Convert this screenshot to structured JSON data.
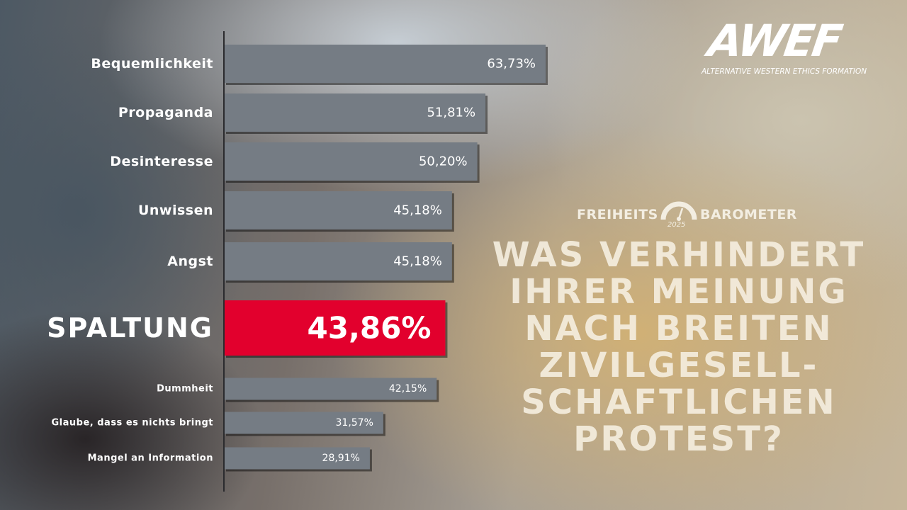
{
  "logo": {
    "mark": "AWEF",
    "name": "ALTERNATIVE WESTERN ETHICS FORMATION"
  },
  "barometer": {
    "word_left": "FREIHEITS",
    "word_right": "BAROMETER",
    "year": "2025",
    "gauge_icon": "gauge-icon"
  },
  "question": {
    "lines": [
      "WAS VERHINDERT",
      "IHRER MEINUNG",
      "NACH BREITEN",
      "ZIVILGESELL-",
      "SCHAFTLICHEN",
      "PROTEST?"
    ]
  },
  "colors": {
    "bar": "#757c84",
    "highlight": "#e2002d",
    "axis": "#2b2b2e"
  },
  "chart_data": {
    "type": "bar",
    "orientation": "horizontal",
    "title": "",
    "xlabel": "",
    "ylabel": "",
    "unit": "%",
    "xlim": [
      0,
      63.73
    ],
    "categories": [
      "Bequemlichkeit",
      "Propaganda",
      "Desinteresse",
      "Unwissen",
      "Angst",
      "SPALTUNG",
      "Dummheit",
      "Glaube, dass es nichts bringt",
      "Mangel an Information"
    ],
    "values": [
      63.73,
      51.81,
      50.2,
      45.18,
      45.18,
      43.86,
      42.15,
      31.57,
      28.91
    ],
    "value_labels": [
      "63,73%",
      "51,81%",
      "50,20%",
      "45,18%",
      "45,18%",
      "43,86%",
      "42,15%",
      "31,57%",
      "28,91%"
    ],
    "highlighted": "SPALTUNG"
  }
}
